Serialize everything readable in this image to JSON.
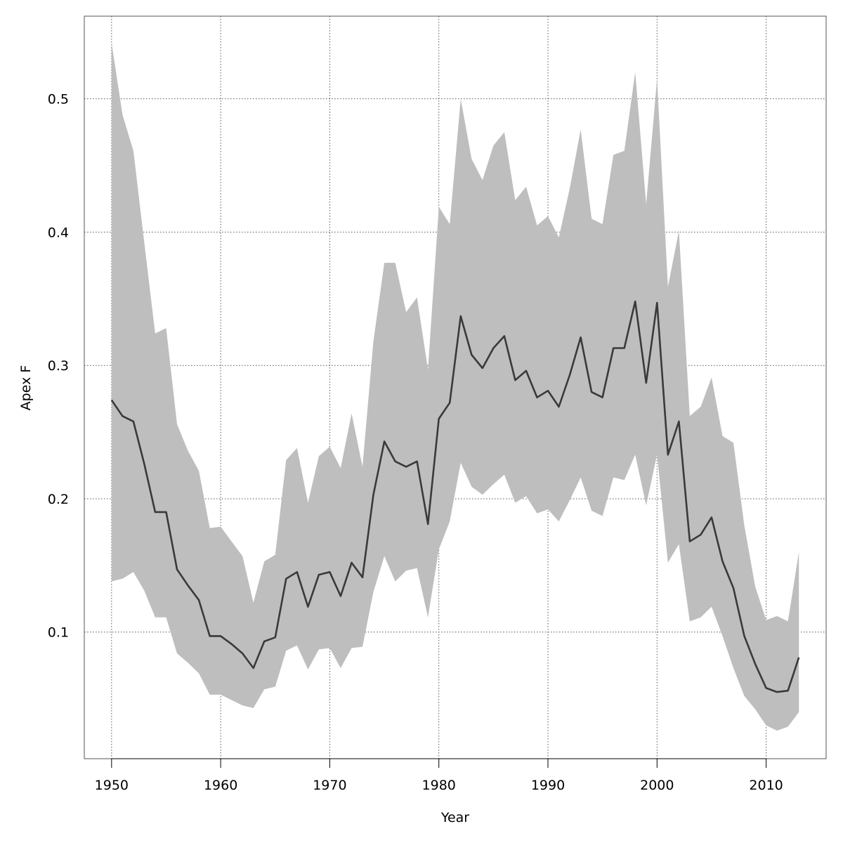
{
  "chart_data": {
    "type": "area",
    "xlabel": "Year",
    "ylabel": "Apex F",
    "xlim": [
      1947.5,
      2015.5
    ],
    "ylim": [
      0.005,
      0.562
    ],
    "x_ticks": [
      1950,
      1960,
      1970,
      1980,
      1990,
      2000,
      2010
    ],
    "y_ticks": [
      0.1,
      0.2,
      0.3,
      0.4,
      0.5
    ],
    "x_tick_labels": [
      "1950",
      "1960",
      "1970",
      "1980",
      "1990",
      "2000",
      "2010"
    ],
    "y_tick_labels": [
      "0.1",
      "0.2",
      "0.3",
      "0.4",
      "0.5"
    ],
    "grid": true,
    "colors": {
      "band": "#bebebe",
      "line": "#3a3a3a",
      "grid": "#555555"
    },
    "x": [
      1950,
      1951,
      1952,
      1953,
      1954,
      1955,
      1956,
      1957,
      1958,
      1959,
      1960,
      1961,
      1962,
      1963,
      1964,
      1965,
      1966,
      1967,
      1968,
      1969,
      1970,
      1971,
      1972,
      1973,
      1974,
      1975,
      1976,
      1977,
      1978,
      1979,
      1980,
      1981,
      1982,
      1983,
      1984,
      1985,
      1986,
      1987,
      1988,
      1989,
      1990,
      1991,
      1992,
      1993,
      1994,
      1995,
      1996,
      1997,
      1998,
      1999,
      2000,
      2001,
      2002,
      2003,
      2004,
      2005,
      2006,
      2007,
      2008,
      2009,
      2010,
      2011,
      2012,
      2013
    ],
    "series": [
      {
        "values": [
          0.274,
          0.262,
          0.258,
          0.226,
          0.19,
          0.19,
          0.147,
          0.135,
          0.124,
          0.097,
          0.097,
          0.091,
          0.084,
          0.073,
          0.093,
          0.096,
          0.14,
          0.145,
          0.119,
          0.143,
          0.145,
          0.127,
          0.152,
          0.141,
          0.203,
          0.243,
          0.228,
          0.224,
          0.228,
          0.181,
          0.26,
          0.272,
          0.337,
          0.308,
          0.298,
          0.313,
          0.322,
          0.289,
          0.296,
          0.276,
          0.281,
          0.269,
          0.293,
          0.321,
          0.28,
          0.276,
          0.313,
          0.313,
          0.348,
          0.287,
          0.347,
          0.233,
          0.258,
          0.168,
          0.173,
          0.186,
          0.153,
          0.133,
          0.097,
          0.076,
          0.058,
          0.055,
          0.056,
          0.081
        ],
        "upper": [
          0.542,
          0.488,
          0.461,
          0.392,
          0.324,
          0.328,
          0.256,
          0.236,
          0.221,
          0.178,
          0.179,
          0.168,
          0.157,
          0.122,
          0.153,
          0.158,
          0.229,
          0.238,
          0.197,
          0.232,
          0.239,
          0.223,
          0.264,
          0.224,
          0.318,
          0.377,
          0.377,
          0.34,
          0.351,
          0.297,
          0.419,
          0.406,
          0.5,
          0.455,
          0.439,
          0.465,
          0.475,
          0.424,
          0.434,
          0.405,
          0.412,
          0.396,
          0.433,
          0.477,
          0.41,
          0.406,
          0.458,
          0.461,
          0.52,
          0.421,
          0.515,
          0.359,
          0.401,
          0.262,
          0.269,
          0.291,
          0.247,
          0.242,
          0.18,
          0.134,
          0.109,
          0.112,
          0.108,
          0.16
        ],
        "lower": [
          0.138,
          0.14,
          0.145,
          0.131,
          0.111,
          0.111,
          0.084,
          0.077,
          0.069,
          0.053,
          0.053,
          0.049,
          0.045,
          0.043,
          0.057,
          0.059,
          0.086,
          0.09,
          0.072,
          0.087,
          0.088,
          0.073,
          0.088,
          0.089,
          0.13,
          0.157,
          0.138,
          0.146,
          0.148,
          0.111,
          0.162,
          0.183,
          0.227,
          0.209,
          0.203,
          0.211,
          0.218,
          0.197,
          0.202,
          0.189,
          0.192,
          0.183,
          0.199,
          0.216,
          0.191,
          0.187,
          0.216,
          0.214,
          0.233,
          0.195,
          0.233,
          0.152,
          0.166,
          0.108,
          0.111,
          0.119,
          0.097,
          0.073,
          0.052,
          0.042,
          0.03,
          0.026,
          0.029,
          0.04
        ]
      }
    ]
  }
}
